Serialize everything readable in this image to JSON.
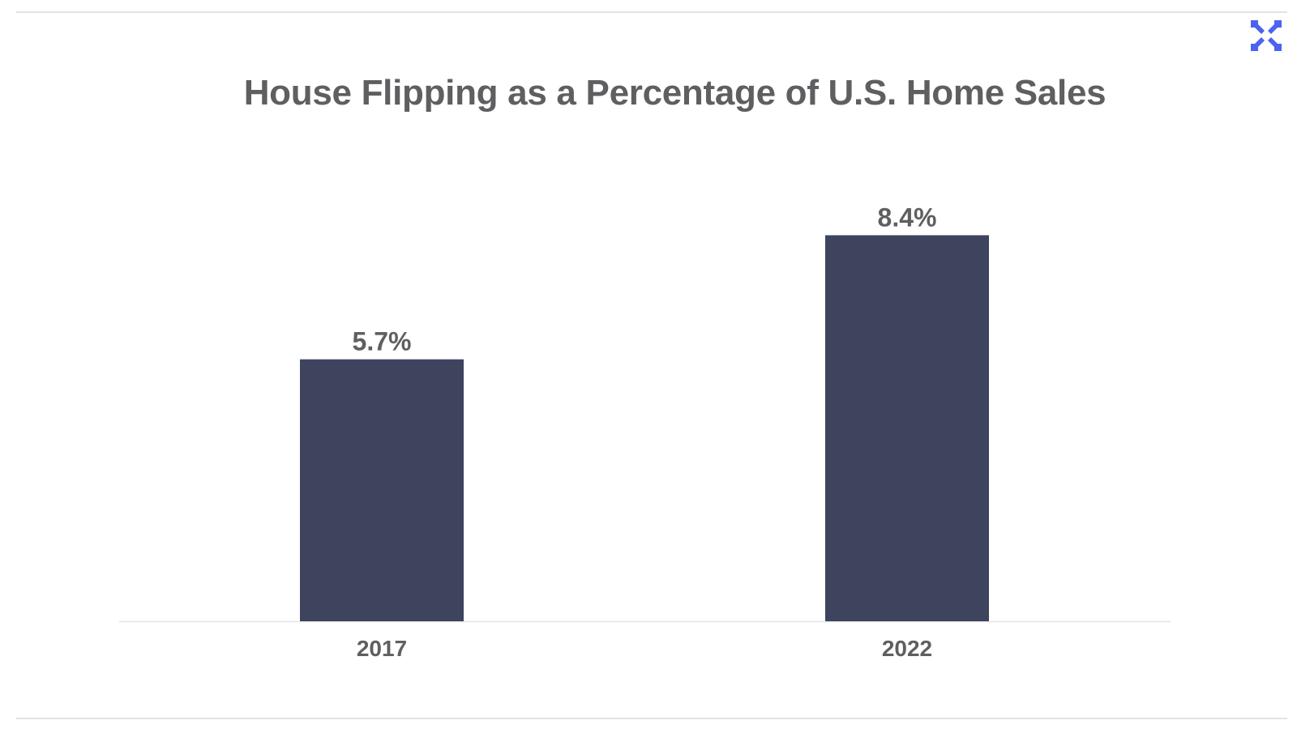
{
  "chart_data": {
    "type": "bar",
    "title": "House Flipping as a Percentage of U.S. Home Sales",
    "categories": [
      "2017",
      "2022"
    ],
    "values": [
      5.7,
      8.4
    ],
    "value_labels": [
      "5.7%",
      "8.4%"
    ],
    "xlabel": "",
    "ylabel": "",
    "ylim": [
      0,
      9.8
    ],
    "grid": false,
    "legend": "none"
  },
  "colors": {
    "bar": "#3e435e",
    "text": "#5f5f62",
    "axis": "#e3e3e3",
    "logo": "#4a63f0"
  },
  "logo": {
    "icon": "x-cross-logo-icon"
  }
}
